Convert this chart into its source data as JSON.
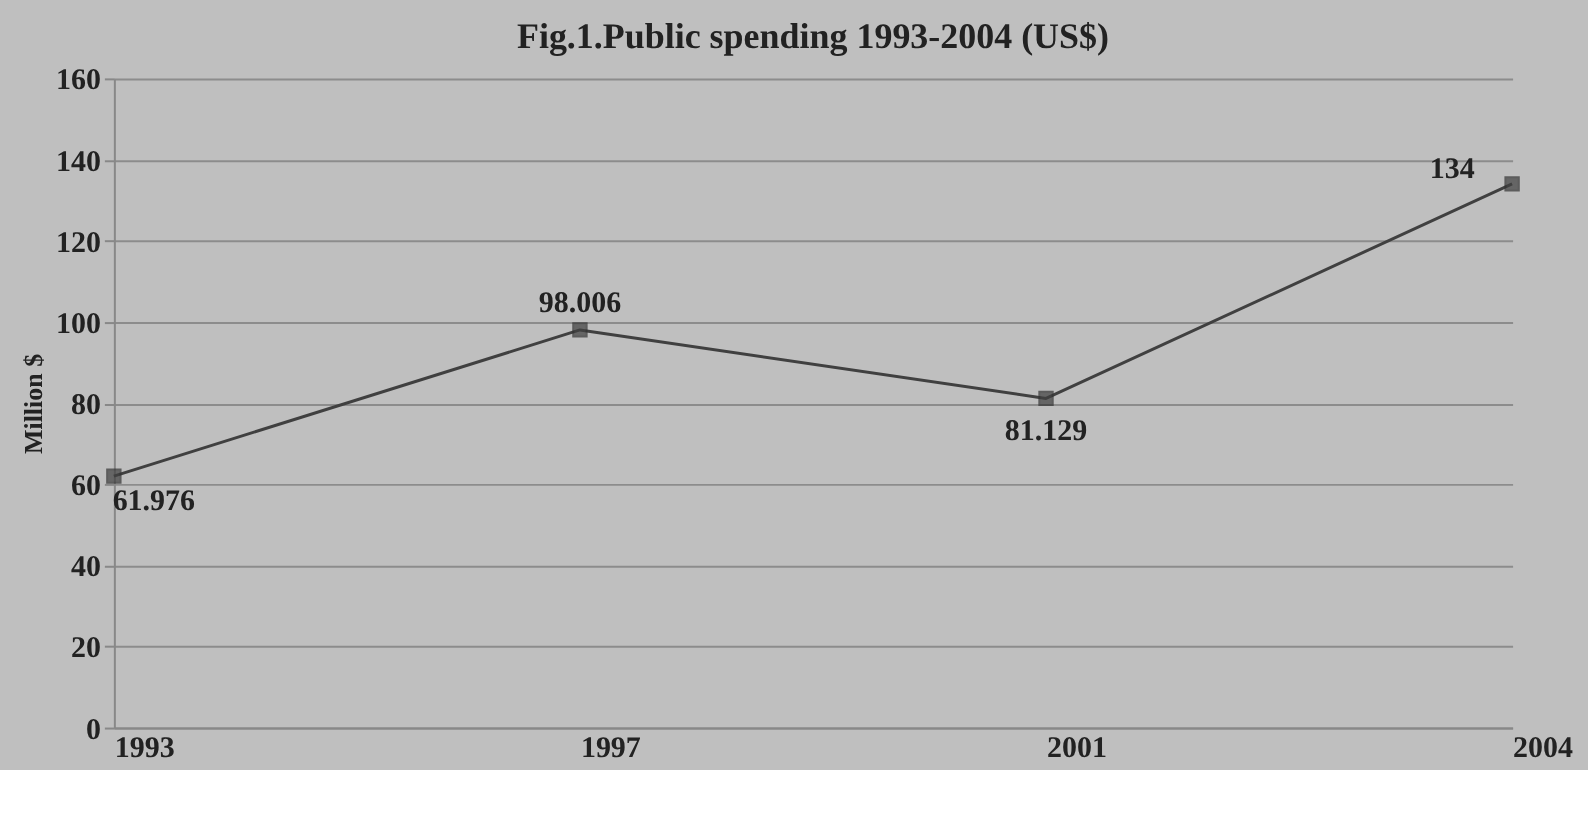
{
  "chart_data": {
    "type": "line",
    "title": "Fig.1.Public spending 1993-2004 (US$)",
    "ylabel": "Million $",
    "categories": [
      "1993",
      "1997",
      "2001",
      "2004"
    ],
    "series": [
      {
        "color": "#404040",
        "values": [
          61.976,
          98.006,
          81.129,
          134
        ]
      }
    ],
    "ylim": [
      0,
      160
    ],
    "yticks": [
      0,
      20,
      40,
      60,
      80,
      100,
      120,
      140,
      160
    ],
    "grid": "y",
    "marker": "square",
    "line_style": "solid",
    "data_labels": true,
    "legend": false
  }
}
